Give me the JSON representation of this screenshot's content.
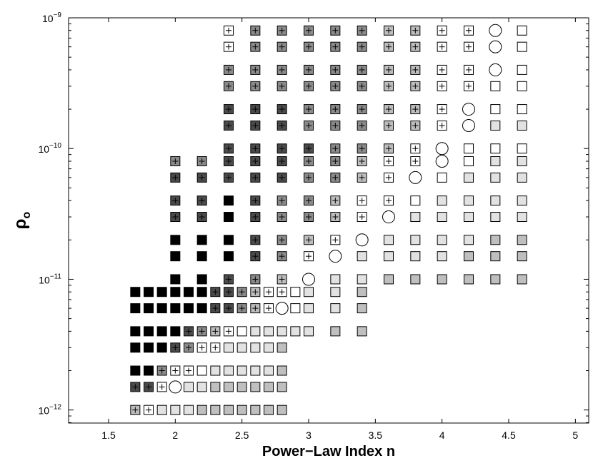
{
  "chart_data": {
    "type": "scatter",
    "xlabel": "Power−Law Index n",
    "ylabel_main": "ρ",
    "ylabel_sub": "o",
    "xlim": [
      1.2,
      5.1
    ],
    "ylim_log10": [
      -12.1,
      -9.0
    ],
    "x_scale": "linear",
    "y_scale": "log",
    "grid": false,
    "legend": "none",
    "x_ticks": [
      {
        "value": 1.5,
        "label": "1.5"
      },
      {
        "value": 2,
        "label": "2"
      },
      {
        "value": 2.5,
        "label": "2.5"
      },
      {
        "value": 3,
        "label": "3"
      },
      {
        "value": 3.5,
        "label": "3.5"
      },
      {
        "value": 4,
        "label": "4"
      },
      {
        "value": 4.5,
        "label": "4.5"
      },
      {
        "value": 5,
        "label": "5"
      }
    ],
    "y_ticks": [
      {
        "exponent": -12,
        "label_base": "10",
        "label_exp": "−12"
      },
      {
        "exponent": -11,
        "label_base": "10",
        "label_exp": "−11"
      },
      {
        "exponent": -10,
        "label_base": "10",
        "label_exp": "−10"
      },
      {
        "exponent": -9,
        "label_base": "10",
        "label_exp": "−9"
      }
    ],
    "symbol_legend": {
      "B": {
        "shape": "square",
        "fill": "#000000",
        "plus": false
      },
      "D": {
        "shape": "square",
        "fill": "#4a4a4a",
        "plus": true
      },
      "G": {
        "shape": "square",
        "fill": "#8a8a8a",
        "plus": true
      },
      "L": {
        "shape": "square",
        "fill": "#bdbdbd",
        "plus": true
      },
      "W": {
        "shape": "square",
        "fill": "#ffffff",
        "plus": true
      },
      "O": {
        "shape": "circle",
        "fill": "#ffffff",
        "plus": false
      },
      "E": {
        "shape": "square",
        "fill": "#ffffff",
        "plus": false
      },
      "F": {
        "shape": "square",
        "fill": "#e2e2e2",
        "plus": false
      },
      "M": {
        "shape": "square",
        "fill": "#bfbfbf",
        "plus": false
      }
    },
    "rows": [
      {
        "y": 1e-12,
        "x": [
          1.7,
          1.8,
          1.9,
          2.0,
          2.1,
          2.2,
          2.3,
          2.4,
          2.5,
          2.6,
          2.7,
          2.8
        ],
        "s": "LWFFFMMMMMMM"
      },
      {
        "y": 1.5e-12,
        "x": [
          1.7,
          1.8,
          1.9,
          2.0,
          2.1,
          2.2,
          2.3,
          2.4,
          2.5,
          2.6,
          2.7,
          2.8
        ],
        "s": "DDWOFFMMMMMM"
      },
      {
        "y": 2e-12,
        "x": [
          1.7,
          1.8,
          1.9,
          2.0,
          2.1,
          2.2,
          2.3,
          2.4,
          2.5,
          2.6,
          2.7,
          2.8
        ],
        "s": "BBGWWEFFFFFM"
      },
      {
        "y": 3e-12,
        "x": [
          1.7,
          1.8,
          1.9,
          2.0,
          2.1,
          2.2,
          2.3,
          2.4,
          2.5,
          2.6,
          2.7,
          2.8
        ],
        "s": "BBBDGWWFFFFM"
      },
      {
        "y": 4e-12,
        "x": [
          1.7,
          1.8,
          1.9,
          2.0,
          2.1,
          2.2,
          2.3,
          2.4,
          2.5,
          2.6,
          2.7,
          2.8,
          2.9,
          3.0,
          3.2,
          3.4
        ],
        "s": "BBBBDGLWEFFFFFMM"
      },
      {
        "y": 6e-12,
        "x": [
          1.7,
          1.8,
          1.9,
          2.0,
          2.1,
          2.2,
          2.3,
          2.4,
          2.5,
          2.6,
          2.7,
          2.8,
          2.9,
          3.0,
          3.2,
          3.4
        ],
        "s": "BBBBBBDDGLWOEFFM"
      },
      {
        "y": 8e-12,
        "x": [
          1.7,
          1.8,
          1.9,
          2.0,
          2.1,
          2.2,
          2.3,
          2.4,
          2.5,
          2.6,
          2.7,
          2.8,
          2.9,
          3.0,
          3.2,
          3.4
        ],
        "s": "BBBBBBDDGLWWEFFM"
      },
      {
        "y": 1e-11,
        "x": [
          2.0,
          2.2,
          2.4,
          2.6,
          2.8,
          3.0,
          3.2,
          3.4,
          3.6,
          3.8,
          4.0,
          4.2,
          4.4,
          4.6
        ],
        "s": "BBDGLOFFMMMMMM"
      },
      {
        "y": 1.5e-11,
        "x": [
          2.0,
          2.2,
          2.4,
          2.6,
          2.8,
          3.0,
          3.2,
          3.4,
          3.6,
          3.8,
          4.0,
          4.2,
          4.4,
          4.6
        ],
        "s": "BBBDGWOFFFFMMM"
      },
      {
        "y": 2e-11,
        "x": [
          2.0,
          2.2,
          2.4,
          2.6,
          2.8,
          3.0,
          3.2,
          3.4,
          3.6,
          3.8,
          4.0,
          4.2,
          4.4,
          4.6
        ],
        "s": "BBBDGLWOFFFFMM"
      },
      {
        "y": 3e-11,
        "x": [
          2.0,
          2.2,
          2.4,
          2.6,
          2.8,
          3.0,
          3.2,
          3.4,
          3.6,
          3.8,
          4.0,
          4.2,
          4.4,
          4.6
        ],
        "s": "DDBDGGLWOFFFFF"
      },
      {
        "y": 4e-11,
        "x": [
          2.0,
          2.2,
          2.4,
          2.6,
          2.8,
          3.0,
          3.2,
          3.4,
          3.6,
          3.8,
          4.0,
          4.2,
          4.4,
          4.6
        ],
        "s": "DDBDGGLWWEFFFF"
      },
      {
        "y": 6e-11,
        "x": [
          2.0,
          2.2,
          2.4,
          2.6,
          2.8,
          3.0,
          3.2,
          3.4,
          3.6,
          3.8,
          4.0,
          4.2,
          4.4,
          4.6
        ],
        "s": "DDDDDGGLWOEFFF"
      },
      {
        "y": 8e-11,
        "x": [
          2.0,
          2.2,
          2.4,
          2.6,
          2.8,
          3.0,
          3.2,
          3.4,
          3.6,
          3.8,
          4.0,
          4.2,
          4.4,
          4.6
        ],
        "s": "GGDDDGGLWWOEFF"
      },
      {
        "y": 1e-10,
        "x": [
          2.4,
          2.6,
          2.8,
          3.0,
          3.2,
          3.4,
          3.6,
          3.8,
          4.0,
          4.2,
          4.4,
          4.6
        ],
        "s": "DDDDGGLWOEEE"
      },
      {
        "y": 1.5e-10,
        "x": [
          2.4,
          2.6,
          2.8,
          3.0,
          3.2,
          3.4,
          3.6,
          3.8,
          4.0,
          4.2,
          4.4,
          4.6
        ],
        "s": "DDDGGGLLWOFF"
      },
      {
        "y": 2e-10,
        "x": [
          2.4,
          2.6,
          2.8,
          3.0,
          3.2,
          3.4,
          3.6,
          3.8,
          4.0,
          4.2,
          4.4,
          4.6
        ],
        "s": "DDDGGGLLWOEE"
      },
      {
        "y": 3e-10,
        "x": [
          2.4,
          2.6,
          2.8,
          3.0,
          3.2,
          3.4,
          3.6,
          3.8,
          4.0,
          4.2,
          4.4,
          4.6
        ],
        "s": "GGGGGGLLWWEE"
      },
      {
        "y": 4e-10,
        "x": [
          2.4,
          2.6,
          2.8,
          3.0,
          3.2,
          3.4,
          3.6,
          3.8,
          4.0,
          4.2,
          4.4,
          4.6
        ],
        "s": "GGGGGGLLWWOE"
      },
      {
        "y": 6e-10,
        "x": [
          2.4,
          2.6,
          2.8,
          3.0,
          3.2,
          3.4,
          3.6,
          3.8,
          4.0,
          4.2,
          4.4,
          4.6
        ],
        "s": "WGGGGGLLWWOE"
      },
      {
        "y": 8e-10,
        "x": [
          2.4,
          2.6,
          2.8,
          3.0,
          3.2,
          3.4,
          3.6,
          3.8,
          4.0,
          4.2,
          4.4,
          4.6
        ],
        "s": "WGGGGGLLWWOE"
      }
    ]
  }
}
